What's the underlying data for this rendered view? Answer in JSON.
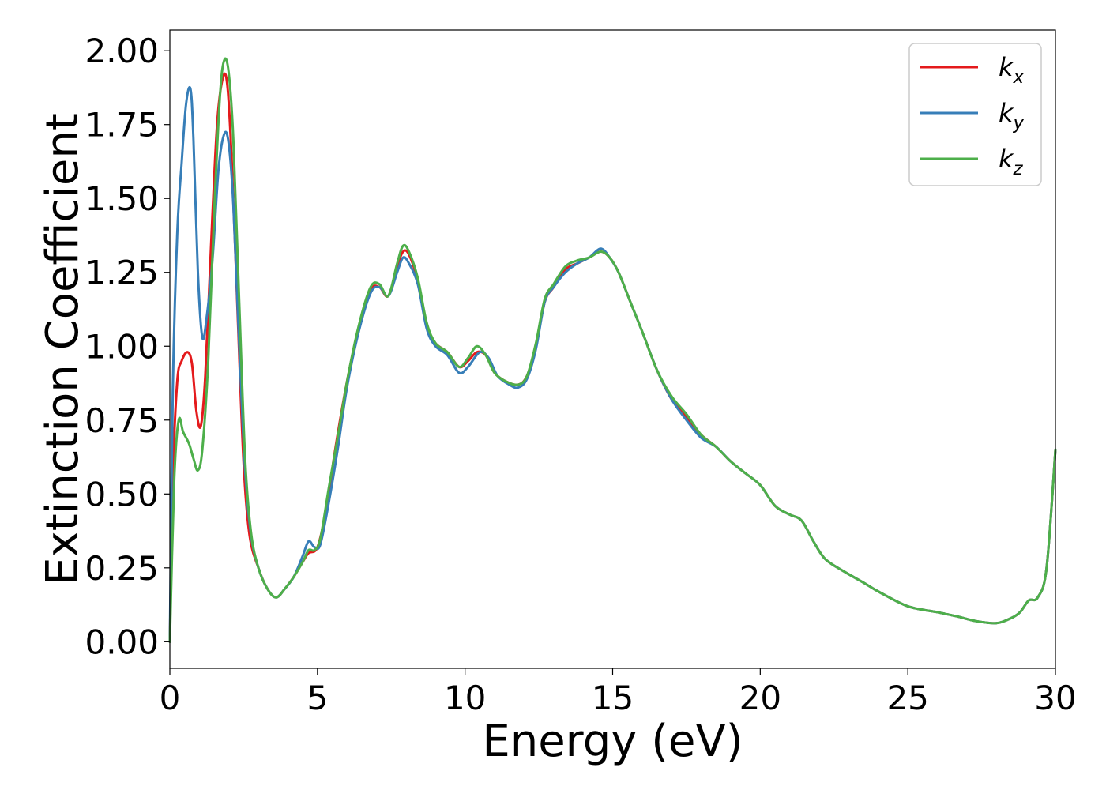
{
  "chart_data": {
    "type": "line",
    "title": "",
    "xlabel": "Energy (eV)",
    "ylabel": "Extinction Coefficient",
    "xlim": [
      0,
      30
    ],
    "ylim": [
      -0.09,
      2.07
    ],
    "grid": false,
    "legend_position": "top-right",
    "x_ticks": [
      "0",
      "5",
      "10",
      "15",
      "20",
      "25",
      "30"
    ],
    "y_ticks": [
      "0.00",
      "0.25",
      "0.50",
      "0.75",
      "1.00",
      "1.25",
      "1.50",
      "1.75",
      "2.00"
    ],
    "series": [
      {
        "name": "k_x",
        "label_base": "k",
        "label_sub": "x",
        "color": "#e41a1c",
        "points": [
          [
            0,
            0
          ],
          [
            0.1,
            0.55
          ],
          [
            0.25,
            0.88
          ],
          [
            0.4,
            0.95
          ],
          [
            0.6,
            0.98
          ],
          [
            0.75,
            0.94
          ],
          [
            0.9,
            0.78
          ],
          [
            1.05,
            0.73
          ],
          [
            1.2,
            0.9
          ],
          [
            1.4,
            1.35
          ],
          [
            1.6,
            1.75
          ],
          [
            1.8,
            1.91
          ],
          [
            1.95,
            1.88
          ],
          [
            2.1,
            1.62
          ],
          [
            2.3,
            1.1
          ],
          [
            2.5,
            0.6
          ],
          [
            2.7,
            0.36
          ],
          [
            3.0,
            0.25
          ],
          [
            3.3,
            0.18
          ],
          [
            3.6,
            0.15
          ],
          [
            3.9,
            0.18
          ],
          [
            4.2,
            0.22
          ],
          [
            4.5,
            0.27
          ],
          [
            4.7,
            0.3
          ],
          [
            5.0,
            0.32
          ],
          [
            5.3,
            0.45
          ],
          [
            5.6,
            0.65
          ],
          [
            6.0,
            0.88
          ],
          [
            6.4,
            1.06
          ],
          [
            6.8,
            1.19
          ],
          [
            7.1,
            1.2
          ],
          [
            7.4,
            1.17
          ],
          [
            7.7,
            1.27
          ],
          [
            7.9,
            1.32
          ],
          [
            8.1,
            1.31
          ],
          [
            8.4,
            1.22
          ],
          [
            8.7,
            1.07
          ],
          [
            9.0,
            1.01
          ],
          [
            9.4,
            0.98
          ],
          [
            9.8,
            0.93
          ],
          [
            10.1,
            0.95
          ],
          [
            10.4,
            0.98
          ],
          [
            10.7,
            0.97
          ],
          [
            11.0,
            0.91
          ],
          [
            11.4,
            0.88
          ],
          [
            11.8,
            0.87
          ],
          [
            12.1,
            0.9
          ],
          [
            12.4,
            1.0
          ],
          [
            12.7,
            1.15
          ],
          [
            13.0,
            1.2
          ],
          [
            13.4,
            1.26
          ],
          [
            13.8,
            1.28
          ],
          [
            14.2,
            1.3
          ],
          [
            14.6,
            1.32
          ],
          [
            14.9,
            1.3
          ],
          [
            15.2,
            1.25
          ],
          [
            15.6,
            1.15
          ],
          [
            16.0,
            1.05
          ],
          [
            16.5,
            0.92
          ],
          [
            17.0,
            0.82
          ],
          [
            17.5,
            0.76
          ],
          [
            18.0,
            0.7
          ],
          [
            18.5,
            0.66
          ],
          [
            19.0,
            0.61
          ],
          [
            19.5,
            0.57
          ],
          [
            20.0,
            0.53
          ],
          [
            20.5,
            0.46
          ],
          [
            21.0,
            0.43
          ],
          [
            21.4,
            0.41
          ],
          [
            21.8,
            0.34
          ],
          [
            22.2,
            0.28
          ],
          [
            22.8,
            0.24
          ],
          [
            23.5,
            0.2
          ],
          [
            24.0,
            0.17
          ],
          [
            25.0,
            0.12
          ],
          [
            26.0,
            0.1
          ],
          [
            26.7,
            0.085
          ],
          [
            27.3,
            0.07
          ],
          [
            28.0,
            0.063
          ],
          [
            28.5,
            0.08
          ],
          [
            28.8,
            0.1
          ],
          [
            29.1,
            0.14
          ],
          [
            29.4,
            0.15
          ],
          [
            29.7,
            0.25
          ],
          [
            30.0,
            0.65
          ]
        ]
      },
      {
        "name": "k_y",
        "label_base": "k",
        "label_sub": "y",
        "color": "#377eb8",
        "points": [
          [
            0,
            0
          ],
          [
            0.1,
            0.85
          ],
          [
            0.25,
            1.38
          ],
          [
            0.4,
            1.62
          ],
          [
            0.55,
            1.82
          ],
          [
            0.7,
            1.87
          ],
          [
            0.8,
            1.7
          ],
          [
            0.95,
            1.25
          ],
          [
            1.1,
            1.03
          ],
          [
            1.25,
            1.1
          ],
          [
            1.45,
            1.3
          ],
          [
            1.65,
            1.6
          ],
          [
            1.85,
            1.72
          ],
          [
            2.0,
            1.68
          ],
          [
            2.15,
            1.48
          ],
          [
            2.35,
            1.0
          ],
          [
            2.55,
            0.58
          ],
          [
            2.75,
            0.36
          ],
          [
            3.0,
            0.25
          ],
          [
            3.3,
            0.18
          ],
          [
            3.6,
            0.15
          ],
          [
            3.9,
            0.18
          ],
          [
            4.2,
            0.22
          ],
          [
            4.5,
            0.29
          ],
          [
            4.7,
            0.34
          ],
          [
            4.9,
            0.32
          ],
          [
            5.1,
            0.33
          ],
          [
            5.4,
            0.48
          ],
          [
            5.7,
            0.66
          ],
          [
            6.0,
            0.86
          ],
          [
            6.4,
            1.05
          ],
          [
            6.8,
            1.18
          ],
          [
            7.1,
            1.2
          ],
          [
            7.4,
            1.17
          ],
          [
            7.7,
            1.25
          ],
          [
            7.9,
            1.3
          ],
          [
            8.1,
            1.28
          ],
          [
            8.4,
            1.21
          ],
          [
            8.7,
            1.06
          ],
          [
            9.0,
            1.0
          ],
          [
            9.4,
            0.97
          ],
          [
            9.8,
            0.91
          ],
          [
            10.1,
            0.93
          ],
          [
            10.5,
            0.98
          ],
          [
            10.8,
            0.96
          ],
          [
            11.1,
            0.9
          ],
          [
            11.5,
            0.87
          ],
          [
            11.8,
            0.86
          ],
          [
            12.1,
            0.89
          ],
          [
            12.4,
            0.99
          ],
          [
            12.7,
            1.15
          ],
          [
            13.0,
            1.2
          ],
          [
            13.4,
            1.25
          ],
          [
            13.8,
            1.28
          ],
          [
            14.2,
            1.3
          ],
          [
            14.6,
            1.33
          ],
          [
            14.9,
            1.3
          ],
          [
            15.2,
            1.25
          ],
          [
            15.6,
            1.15
          ],
          [
            16.0,
            1.05
          ],
          [
            16.5,
            0.92
          ],
          [
            17.0,
            0.82
          ],
          [
            17.5,
            0.75
          ],
          [
            18.0,
            0.69
          ],
          [
            18.5,
            0.66
          ],
          [
            19.0,
            0.61
          ],
          [
            19.5,
            0.57
          ],
          [
            20.0,
            0.53
          ],
          [
            20.5,
            0.46
          ],
          [
            21.0,
            0.43
          ],
          [
            21.4,
            0.41
          ],
          [
            21.8,
            0.34
          ],
          [
            22.2,
            0.28
          ],
          [
            22.8,
            0.24
          ],
          [
            23.5,
            0.2
          ],
          [
            24.0,
            0.17
          ],
          [
            25.0,
            0.12
          ],
          [
            26.0,
            0.1
          ],
          [
            26.7,
            0.085
          ],
          [
            27.3,
            0.07
          ],
          [
            28.0,
            0.063
          ],
          [
            28.5,
            0.08
          ],
          [
            28.8,
            0.1
          ],
          [
            29.1,
            0.14
          ],
          [
            29.4,
            0.15
          ],
          [
            29.7,
            0.25
          ],
          [
            30.0,
            0.65
          ]
        ]
      },
      {
        "name": "k_z",
        "label_base": "k",
        "label_sub": "z",
        "color": "#4daf4a",
        "points": [
          [
            0,
            0
          ],
          [
            0.15,
            0.55
          ],
          [
            0.3,
            0.75
          ],
          [
            0.45,
            0.71
          ],
          [
            0.65,
            0.67
          ],
          [
            0.8,
            0.62
          ],
          [
            0.95,
            0.58
          ],
          [
            1.1,
            0.65
          ],
          [
            1.3,
            0.95
          ],
          [
            1.5,
            1.45
          ],
          [
            1.7,
            1.85
          ],
          [
            1.85,
            1.97
          ],
          [
            2.0,
            1.92
          ],
          [
            2.15,
            1.7
          ],
          [
            2.35,
            1.15
          ],
          [
            2.55,
            0.62
          ],
          [
            2.75,
            0.37
          ],
          [
            3.0,
            0.25
          ],
          [
            3.3,
            0.18
          ],
          [
            3.6,
            0.15
          ],
          [
            3.9,
            0.18
          ],
          [
            4.2,
            0.22
          ],
          [
            4.5,
            0.27
          ],
          [
            4.7,
            0.31
          ],
          [
            4.9,
            0.31
          ],
          [
            5.1,
            0.35
          ],
          [
            5.4,
            0.53
          ],
          [
            5.7,
            0.7
          ],
          [
            6.0,
            0.88
          ],
          [
            6.4,
            1.07
          ],
          [
            6.8,
            1.2
          ],
          [
            7.1,
            1.21
          ],
          [
            7.4,
            1.17
          ],
          [
            7.7,
            1.28
          ],
          [
            7.9,
            1.34
          ],
          [
            8.1,
            1.32
          ],
          [
            8.4,
            1.23
          ],
          [
            8.7,
            1.08
          ],
          [
            9.0,
            1.01
          ],
          [
            9.4,
            0.98
          ],
          [
            9.8,
            0.93
          ],
          [
            10.1,
            0.96
          ],
          [
            10.4,
            1.0
          ],
          [
            10.7,
            0.97
          ],
          [
            11.0,
            0.91
          ],
          [
            11.4,
            0.88
          ],
          [
            11.8,
            0.87
          ],
          [
            12.1,
            0.9
          ],
          [
            12.4,
            1.01
          ],
          [
            12.7,
            1.16
          ],
          [
            13.0,
            1.21
          ],
          [
            13.4,
            1.27
          ],
          [
            13.8,
            1.29
          ],
          [
            14.2,
            1.3
          ],
          [
            14.6,
            1.32
          ],
          [
            14.9,
            1.3
          ],
          [
            15.2,
            1.25
          ],
          [
            15.6,
            1.15
          ],
          [
            16.0,
            1.05
          ],
          [
            16.5,
            0.92
          ],
          [
            17.0,
            0.83
          ],
          [
            17.5,
            0.77
          ],
          [
            18.0,
            0.7
          ],
          [
            18.5,
            0.66
          ],
          [
            19.0,
            0.61
          ],
          [
            19.5,
            0.57
          ],
          [
            20.0,
            0.53
          ],
          [
            20.5,
            0.46
          ],
          [
            21.0,
            0.43
          ],
          [
            21.4,
            0.41
          ],
          [
            21.8,
            0.34
          ],
          [
            22.2,
            0.28
          ],
          [
            22.8,
            0.24
          ],
          [
            23.5,
            0.2
          ],
          [
            24.0,
            0.17
          ],
          [
            25.0,
            0.12
          ],
          [
            26.0,
            0.1
          ],
          [
            26.7,
            0.085
          ],
          [
            27.3,
            0.07
          ],
          [
            28.0,
            0.063
          ],
          [
            28.5,
            0.08
          ],
          [
            28.8,
            0.1
          ],
          [
            29.1,
            0.14
          ],
          [
            29.4,
            0.15
          ],
          [
            29.7,
            0.25
          ],
          [
            30.0,
            0.65
          ]
        ]
      }
    ]
  }
}
